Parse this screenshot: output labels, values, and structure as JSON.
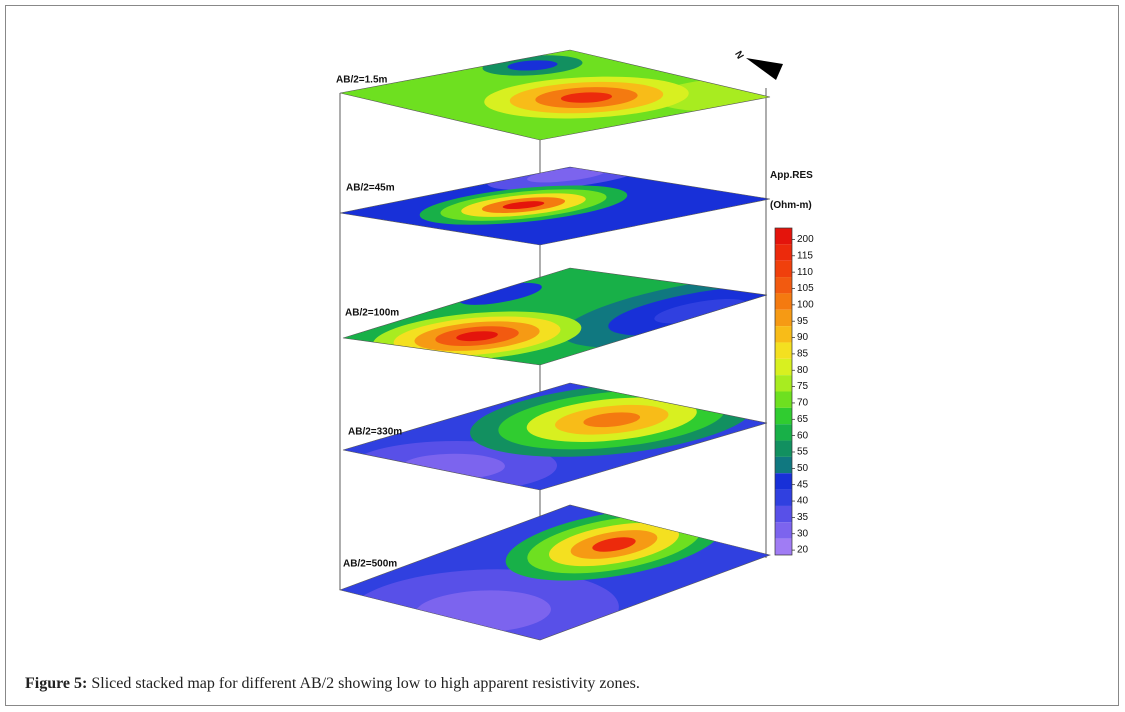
{
  "figure": {
    "slices": [
      {
        "label": "AB/2=1.5m"
      },
      {
        "label": "AB/2=45m"
      },
      {
        "label": "AB/2=100m"
      },
      {
        "label": "AB/2=330m"
      },
      {
        "label": "AB/2=500m"
      }
    ],
    "compass": "N",
    "colorbar": {
      "title": "App.RES",
      "unit": "(Ohm-m)",
      "levels": [
        200,
        115,
        110,
        105,
        100,
        95,
        90,
        85,
        80,
        75,
        70,
        65,
        60,
        55,
        50,
        45,
        40,
        35,
        30,
        20
      ],
      "colors": [
        "#e4140c",
        "#ec2a0c",
        "#f0400c",
        "#f25a10",
        "#f47a10",
        "#f69a14",
        "#f8bc18",
        "#f4e020",
        "#d8f020",
        "#a8ec20",
        "#6ee020",
        "#30cc30",
        "#18b048",
        "#129060",
        "#107880",
        "#1830d8",
        "#3040e0",
        "#5850e8",
        "#7c64ee",
        "#a07cf4"
      ]
    }
  },
  "caption": {
    "label": "Figure 5:",
    "text": "Sliced stacked map for different AB/2 showing low to high apparent resistivity zones."
  }
}
